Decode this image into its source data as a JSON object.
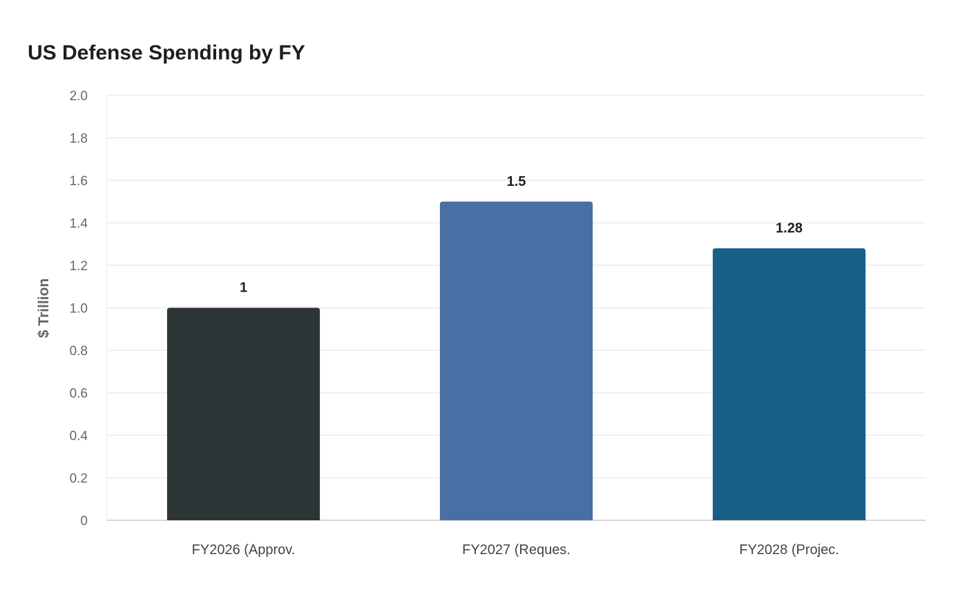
{
  "chart_data": {
    "type": "bar",
    "title": "US Defense Spending by FY",
    "xlabel": "",
    "ylabel": "$ Trillion",
    "categories": [
      "FY2026 (Approv.",
      "FY2027 (Reques.",
      "FY2028 (Projec."
    ],
    "values": [
      1,
      1.5,
      1.28
    ],
    "data_labels": [
      "1",
      "1.5",
      "1.28"
    ],
    "colors": [
      "#2d3436",
      "#4a6fa5",
      "#166088"
    ],
    "ylim": [
      0,
      2.0
    ],
    "yticks": [
      0,
      0.2,
      0.4,
      0.6,
      0.8,
      1.0,
      1.2,
      1.4,
      1.6,
      1.8,
      2.0
    ],
    "ytick_labels": [
      "0",
      "0.2",
      "0.4",
      "0.6",
      "0.8",
      "1.0",
      "1.2",
      "1.4",
      "1.6",
      "1.8",
      "2.0"
    ],
    "grid": true,
    "legend": "none"
  }
}
